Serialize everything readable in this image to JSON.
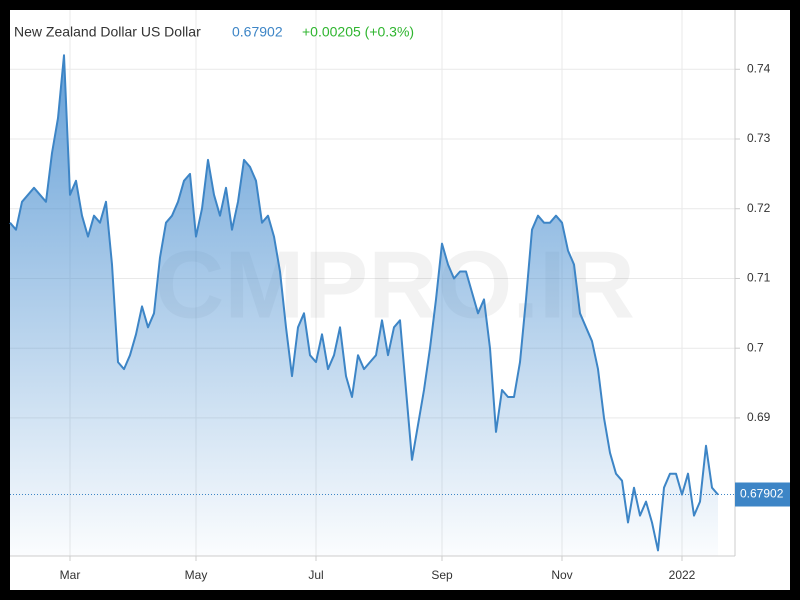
{
  "chart_data": {
    "type": "area",
    "title": "New Zealand Dollar US Dollar",
    "price": 0.67902,
    "change": "+0.00205 (+0.3%)",
    "watermark": "CMPRO.IR",
    "color": "#3d85c6",
    "price_color": "#3d85c6",
    "change_color": "#2fb52f",
    "grid": true,
    "ylim": [
      0.6702,
      0.7485
    ],
    "yticks": [
      0.69,
      0.7,
      0.71,
      0.72,
      0.73,
      0.74
    ],
    "categories": [
      null,
      null,
      null,
      null,
      null,
      null,
      null,
      null,
      null,
      null,
      "Mar",
      null,
      null,
      null,
      null,
      null,
      null,
      null,
      null,
      null,
      null,
      null,
      null,
      null,
      null,
      null,
      null,
      null,
      null,
      null,
      null,
      "May",
      null,
      null,
      null,
      null,
      null,
      null,
      null,
      null,
      null,
      null,
      null,
      null,
      null,
      null,
      null,
      null,
      null,
      null,
      null,
      "Jul",
      null,
      null,
      null,
      null,
      null,
      null,
      null,
      null,
      null,
      null,
      null,
      null,
      null,
      null,
      null,
      null,
      null,
      null,
      null,
      null,
      "Sep",
      null,
      null,
      null,
      null,
      null,
      null,
      null,
      null,
      null,
      null,
      null,
      null,
      null,
      null,
      null,
      null,
      null,
      null,
      null,
      "Nov",
      null,
      null,
      null,
      null,
      null,
      null,
      null,
      null,
      null,
      null,
      null,
      null,
      null,
      null,
      null,
      null,
      null,
      null,
      null,
      "2022",
      null,
      null,
      null,
      null,
      null,
      null
    ],
    "values": [
      0.718,
      0.717,
      0.721,
      0.722,
      0.723,
      0.722,
      0.721,
      0.728,
      0.733,
      0.742,
      0.722,
      0.724,
      0.719,
      0.716,
      0.719,
      0.718,
      0.721,
      0.712,
      0.698,
      0.697,
      0.699,
      0.702,
      0.706,
      0.703,
      0.705,
      0.713,
      0.718,
      0.719,
      0.721,
      0.724,
      0.725,
      0.716,
      0.72,
      0.727,
      0.722,
      0.719,
      0.723,
      0.717,
      0.721,
      0.727,
      0.726,
      0.724,
      0.718,
      0.719,
      0.716,
      0.711,
      0.703,
      0.696,
      0.703,
      0.705,
      0.699,
      0.698,
      0.702,
      0.697,
      0.699,
      0.703,
      0.696,
      0.693,
      0.699,
      0.697,
      0.698,
      0.699,
      0.704,
      0.699,
      0.703,
      0.704,
      0.694,
      0.684,
      0.689,
      0.694,
      0.7,
      0.707,
      0.715,
      0.712,
      0.71,
      0.711,
      0.711,
      0.708,
      0.705,
      0.707,
      0.7,
      0.688,
      0.694,
      0.693,
      0.693,
      0.698,
      0.707,
      0.717,
      0.719,
      0.718,
      0.718,
      0.719,
      0.718,
      0.714,
      0.712,
      0.705,
      0.703,
      0.701,
      0.697,
      0.69,
      0.685,
      0.682,
      0.681,
      0.675,
      0.68,
      0.676,
      0.678,
      0.675,
      0.671,
      0.68,
      0.682,
      0.682,
      0.679,
      0.682,
      0.676,
      0.678,
      0.686,
      0.68,
      0.679
    ]
  }
}
